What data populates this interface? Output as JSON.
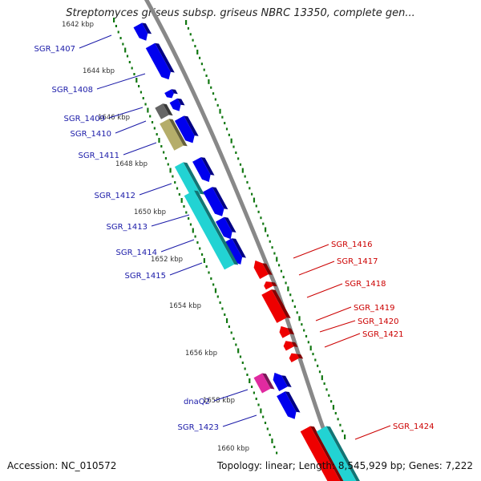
{
  "title": "Streptomyces griseus subsp. griseus NBRC 13350, complete gen...",
  "footer": {
    "accession": "Accession: NC_010572",
    "summary": "Topology: linear; Length: 8,545,929 bp; Genes: 7,222"
  },
  "colors": {
    "forward_gene": "#0000ee",
    "reverse_gene": "#ee0000",
    "rna": "#22d3d3",
    "grey_feature": "#666666",
    "olive_feature": "#b5ad6a",
    "magenta_feature": "#e02aa0",
    "forward_label": "#1a1aa8",
    "reverse_label": "#cc0000",
    "tick": "#117711",
    "backbone": "#888888"
  },
  "scale_labels": [
    "1642 kbp",
    "1644 kbp",
    "1646 kbp",
    "1648 kbp",
    "1650 kbp",
    "1652 kbp",
    "1654 kbp",
    "1656 kbp",
    "1658 kbp",
    "1660 kbp"
  ],
  "forward_labels": [
    "SGR_1407",
    "SGR_1408",
    "SGR_1409",
    "SGR_1410",
    "SGR_1411",
    "SGR_1412",
    "SGR_1413",
    "SGR_1414",
    "SGR_1415",
    "dnaQ2",
    "SGR_1423"
  ],
  "reverse_labels": [
    "SGR_1416",
    "SGR_1417",
    "SGR_1418",
    "SGR_1419",
    "SGR_1420",
    "SGR_1421",
    "SGR_1424"
  ]
}
